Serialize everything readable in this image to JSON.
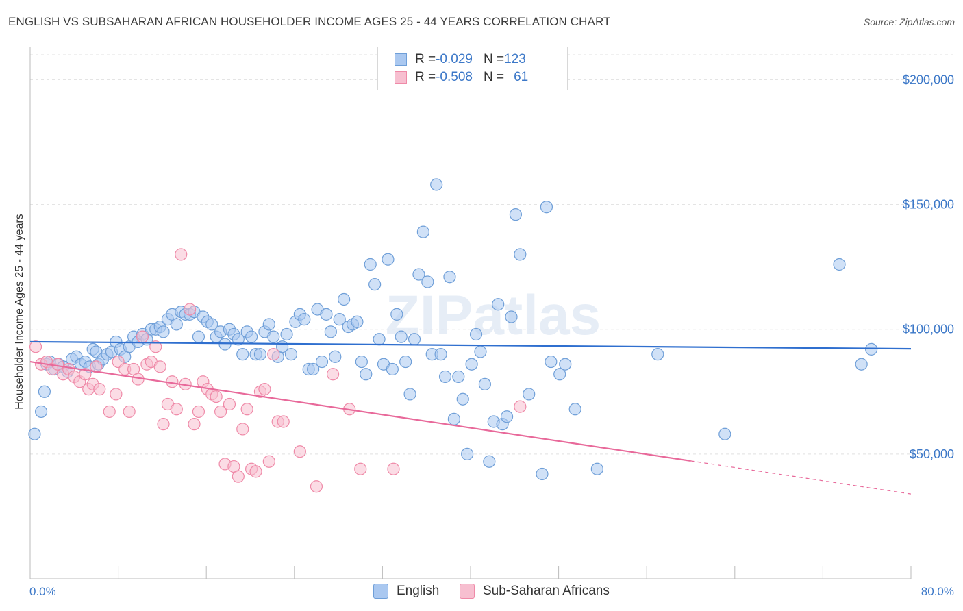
{
  "header": {
    "title": "ENGLISH VS SUBSAHARAN AFRICAN HOUSEHOLDER INCOME AGES 25 - 44 YEARS CORRELATION CHART",
    "source": "Source: ZipAtlas.com"
  },
  "legend": {
    "english": {
      "r_label": "R = ",
      "r_value": "-0.029",
      "n_label": "N = ",
      "n_value": "123"
    },
    "subsaharan": {
      "r_label": "R = ",
      "r_value": "-0.508",
      "n_label": "N = ",
      "n_value": "61"
    }
  },
  "watermark": "ZIPatlas",
  "colors": {
    "english_fill": "#aac8f0",
    "english_stroke": "#6f9fd8",
    "english_line": "#2f6fcf",
    "subsaharan_fill": "#f7bfd0",
    "subsaharan_stroke": "#ef8aa8",
    "subsaharan_line": "#e8699a",
    "axis_label": "#3c78c8",
    "grid": "#e0e0e0"
  },
  "chart_data": {
    "type": "scatter",
    "title": "ENGLISH VS SUBSAHARAN AFRICAN HOUSEHOLDER INCOME AGES 25 - 44 YEARS CORRELATION CHART",
    "xlabel": "",
    "ylabel": "Householder Income Ages 25 - 44 years",
    "xlim": [
      0,
      80
    ],
    "ylim": [
      0,
      210000
    ],
    "x_tick_labels": [
      "0.0%",
      "80.0%"
    ],
    "y_ticks": [
      50000,
      100000,
      150000,
      200000
    ],
    "y_tick_labels": [
      "$50,000",
      "$100,000",
      "$150,000",
      "$200,000"
    ],
    "grid": true,
    "legend_position": "top-center",
    "series": [
      {
        "name": "English",
        "trend": {
          "x": [
            0,
            80
          ],
          "y": [
            95000,
            92200
          ]
        },
        "points": [
          [
            0.4,
            58000
          ],
          [
            1.0,
            67000
          ],
          [
            1.3,
            75000
          ],
          [
            1.5,
            86000
          ],
          [
            1.8,
            87000
          ],
          [
            2.2,
            84000
          ],
          [
            2.6,
            86000
          ],
          [
            3.0,
            85000
          ],
          [
            3.4,
            83000
          ],
          [
            3.8,
            88000
          ],
          [
            4.2,
            89000
          ],
          [
            4.6,
            86000
          ],
          [
            5.0,
            87000
          ],
          [
            5.4,
            85000
          ],
          [
            5.7,
            92000
          ],
          [
            6.0,
            91000
          ],
          [
            6.2,
            86000
          ],
          [
            6.6,
            88000
          ],
          [
            7.0,
            90000
          ],
          [
            7.4,
            91000
          ],
          [
            7.8,
            95000
          ],
          [
            8.2,
            92000
          ],
          [
            8.6,
            89000
          ],
          [
            9.0,
            93000
          ],
          [
            9.4,
            97000
          ],
          [
            9.8,
            95000
          ],
          [
            10.2,
            98000
          ],
          [
            10.6,
            96000
          ],
          [
            11.0,
            100000
          ],
          [
            11.4,
            100000
          ],
          [
            11.8,
            101000
          ],
          [
            12.1,
            99000
          ],
          [
            12.5,
            104000
          ],
          [
            12.9,
            106000
          ],
          [
            13.3,
            102000
          ],
          [
            13.7,
            107000
          ],
          [
            14.1,
            106000
          ],
          [
            14.5,
            106000
          ],
          [
            14.9,
            107000
          ],
          [
            15.3,
            97000
          ],
          [
            15.7,
            105000
          ],
          [
            16.1,
            103000
          ],
          [
            16.5,
            102000
          ],
          [
            16.9,
            97000
          ],
          [
            17.3,
            99000
          ],
          [
            17.7,
            94000
          ],
          [
            18.1,
            100000
          ],
          [
            18.5,
            98000
          ],
          [
            18.9,
            96000
          ],
          [
            19.3,
            90000
          ],
          [
            19.7,
            99000
          ],
          [
            20.1,
            97000
          ],
          [
            20.5,
            90000
          ],
          [
            20.9,
            90000
          ],
          [
            21.3,
            99000
          ],
          [
            21.7,
            102000
          ],
          [
            22.1,
            97000
          ],
          [
            22.5,
            89000
          ],
          [
            22.9,
            93000
          ],
          [
            23.3,
            98000
          ],
          [
            23.7,
            90000
          ],
          [
            24.1,
            103000
          ],
          [
            24.5,
            106000
          ],
          [
            24.9,
            104000
          ],
          [
            25.3,
            84000
          ],
          [
            25.7,
            84000
          ],
          [
            26.1,
            108000
          ],
          [
            26.5,
            87000
          ],
          [
            26.9,
            106000
          ],
          [
            27.3,
            99000
          ],
          [
            27.7,
            89000
          ],
          [
            28.1,
            104000
          ],
          [
            28.5,
            112000
          ],
          [
            28.9,
            101000
          ],
          [
            29.3,
            102000
          ],
          [
            29.7,
            103000
          ],
          [
            30.1,
            87000
          ],
          [
            30.5,
            82000
          ],
          [
            30.9,
            126000
          ],
          [
            31.3,
            118000
          ],
          [
            31.7,
            96000
          ],
          [
            32.1,
            86000
          ],
          [
            32.5,
            128000
          ],
          [
            32.9,
            84000
          ],
          [
            33.3,
            106000
          ],
          [
            33.7,
            97000
          ],
          [
            34.1,
            87000
          ],
          [
            34.5,
            74000
          ],
          [
            34.9,
            96000
          ],
          [
            35.3,
            122000
          ],
          [
            35.7,
            139000
          ],
          [
            36.1,
            119000
          ],
          [
            36.5,
            90000
          ],
          [
            36.9,
            158000
          ],
          [
            37.3,
            90000
          ],
          [
            37.7,
            81000
          ],
          [
            38.1,
            121000
          ],
          [
            38.5,
            64000
          ],
          [
            38.9,
            81000
          ],
          [
            39.3,
            72000
          ],
          [
            39.7,
            50000
          ],
          [
            40.1,
            86000
          ],
          [
            40.5,
            98000
          ],
          [
            40.9,
            91000
          ],
          [
            41.3,
            78000
          ],
          [
            41.7,
            47000
          ],
          [
            42.1,
            63000
          ],
          [
            42.5,
            110000
          ],
          [
            42.9,
            62000
          ],
          [
            43.3,
            65000
          ],
          [
            43.7,
            105000
          ],
          [
            44.1,
            146000
          ],
          [
            44.5,
            130000
          ],
          [
            45.3,
            74000
          ],
          [
            46.5,
            42000
          ],
          [
            46.9,
            149000
          ],
          [
            47.3,
            87000
          ],
          [
            48.1,
            82000
          ],
          [
            48.6,
            86000
          ],
          [
            49.5,
            68000
          ],
          [
            51.5,
            44000
          ],
          [
            57.0,
            90000
          ],
          [
            63.1,
            58000
          ],
          [
            73.5,
            126000
          ],
          [
            75.5,
            86000
          ],
          [
            76.4,
            92000
          ]
        ]
      },
      {
        "name": "Sub-Saharan Africans",
        "trend": {
          "x": [
            0,
            80
          ],
          "y": [
            87000,
            34000
          ]
        },
        "points": [
          [
            0.5,
            93000
          ],
          [
            1.0,
            86000
          ],
          [
            1.5,
            87000
          ],
          [
            2.0,
            84000
          ],
          [
            2.5,
            86000
          ],
          [
            3.0,
            82000
          ],
          [
            3.5,
            84000
          ],
          [
            4.0,
            81000
          ],
          [
            4.5,
            79000
          ],
          [
            5.0,
            82000
          ],
          [
            5.3,
            76000
          ],
          [
            5.7,
            78000
          ],
          [
            6.0,
            85000
          ],
          [
            6.3,
            76000
          ],
          [
            7.2,
            67000
          ],
          [
            7.8,
            74000
          ],
          [
            8.0,
            87000
          ],
          [
            8.6,
            84000
          ],
          [
            9.0,
            67000
          ],
          [
            9.4,
            84000
          ],
          [
            9.8,
            80000
          ],
          [
            10.2,
            97000
          ],
          [
            10.6,
            86000
          ],
          [
            11.0,
            87000
          ],
          [
            11.4,
            93000
          ],
          [
            11.8,
            85000
          ],
          [
            12.1,
            62000
          ],
          [
            12.5,
            70000
          ],
          [
            12.9,
            79000
          ],
          [
            13.3,
            68000
          ],
          [
            13.7,
            130000
          ],
          [
            14.1,
            78000
          ],
          [
            14.5,
            108000
          ],
          [
            14.9,
            62000
          ],
          [
            15.3,
            67000
          ],
          [
            15.7,
            79000
          ],
          [
            16.1,
            76000
          ],
          [
            16.5,
            74000
          ],
          [
            16.9,
            73000
          ],
          [
            17.3,
            67000
          ],
          [
            17.7,
            46000
          ],
          [
            18.1,
            70000
          ],
          [
            18.5,
            45000
          ],
          [
            18.9,
            41000
          ],
          [
            19.3,
            60000
          ],
          [
            19.7,
            68000
          ],
          [
            20.1,
            44000
          ],
          [
            20.5,
            43000
          ],
          [
            20.9,
            75000
          ],
          [
            21.3,
            76000
          ],
          [
            21.7,
            47000
          ],
          [
            22.1,
            90000
          ],
          [
            22.5,
            63000
          ],
          [
            23.0,
            63000
          ],
          [
            24.5,
            51000
          ],
          [
            26.0,
            37000
          ],
          [
            27.5,
            82000
          ],
          [
            29.0,
            68000
          ],
          [
            44.5,
            69000
          ],
          [
            30.0,
            44000
          ],
          [
            33.0,
            44000
          ]
        ]
      }
    ]
  }
}
